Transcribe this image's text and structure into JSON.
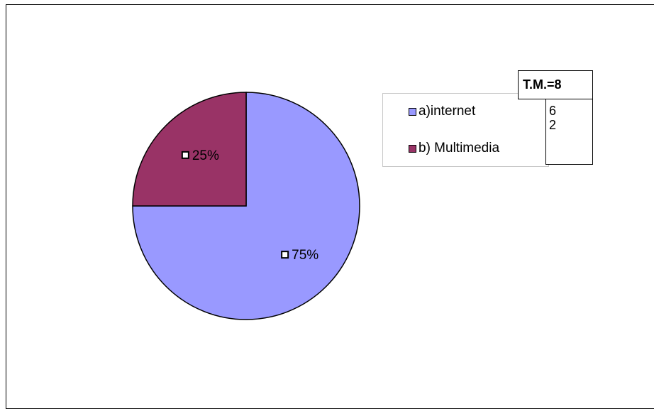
{
  "chart_data": {
    "type": "pie",
    "categories": [
      "a)internet",
      "b) Multimedia"
    ],
    "values": [
      75,
      25
    ],
    "data_labels": [
      "75%",
      "25%"
    ],
    "colors": [
      "#9999ff",
      "#993366"
    ],
    "legend_position": "top-right"
  },
  "table": {
    "header": "T.M.=8",
    "values": [
      "6",
      "2"
    ]
  }
}
